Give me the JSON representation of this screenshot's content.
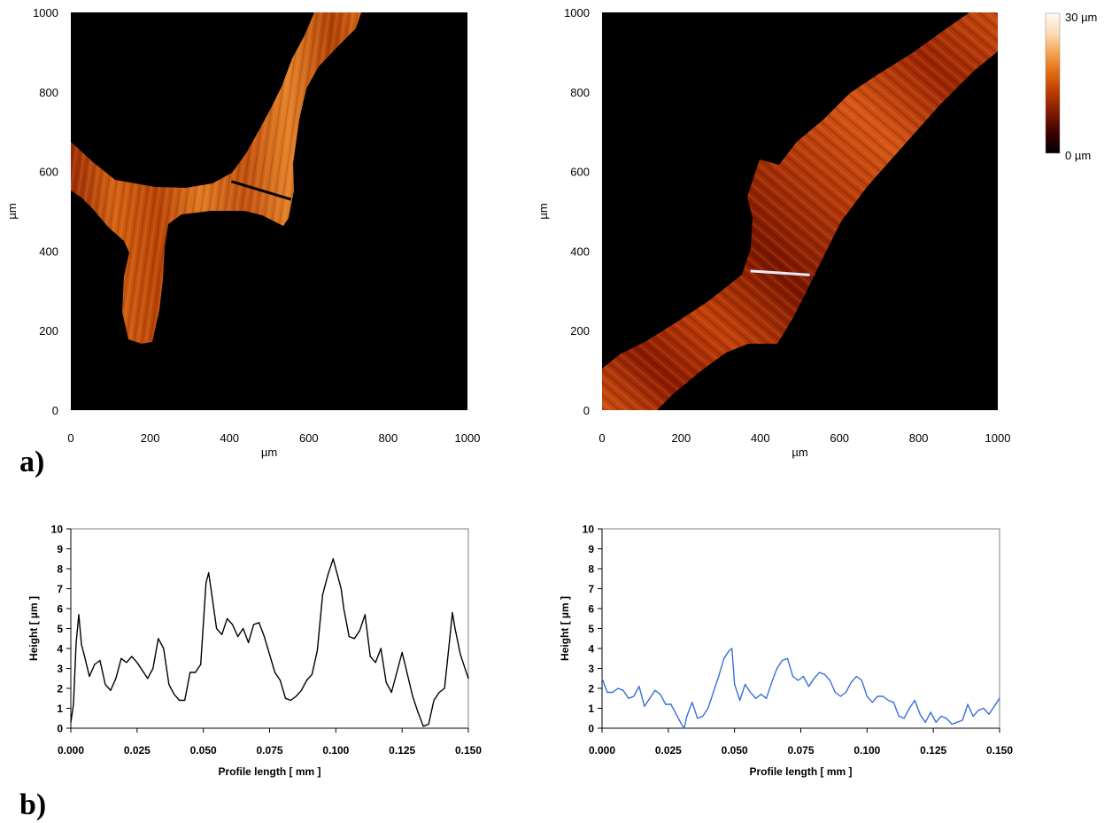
{
  "panel_labels": {
    "a": "a)",
    "b": "b)"
  },
  "colorbar": {
    "max_label": "30 µm",
    "min_label": "0 µm",
    "stops": [
      "#000000",
      "#3a0000",
      "#7a1a00",
      "#b83a00",
      "#e06a10",
      "#f6a050",
      "#fcdcb8",
      "#fffaf2"
    ]
  },
  "chart_data": [
    {
      "type": "heatmap",
      "name": "map-left",
      "xlabel": "µm",
      "ylabel": "µm",
      "xlim": [
        0,
        1000
      ],
      "ylim": [
        0,
        1000
      ],
      "xticks": [
        "0",
        "200",
        "400",
        "600",
        "800",
        "1000"
      ],
      "yticks": [
        "0",
        "200",
        "400",
        "600",
        "800",
        "1000"
      ],
      "colorscale_range_um": [
        0,
        30
      ],
      "profile_line": {
        "x": [
          405,
          555
        ],
        "y": [
          575,
          530
        ],
        "color": "#000000"
      }
    },
    {
      "type": "heatmap",
      "name": "map-right",
      "xlabel": "µm",
      "ylabel": "µm",
      "xlim": [
        0,
        1000
      ],
      "ylim": [
        0,
        1000
      ],
      "xticks": [
        "0",
        "200",
        "400",
        "600",
        "800",
        "1000"
      ],
      "yticks": [
        "0",
        "200",
        "400",
        "600",
        "800",
        "1000"
      ],
      "colorscale_range_um": [
        0,
        30
      ],
      "profile_line": {
        "x": [
          375,
          525
        ],
        "y": [
          350,
          340
        ],
        "color": "#e8e8ff"
      }
    },
    {
      "type": "line",
      "name": "profile-left",
      "xlabel": "Profile length [ mm ]",
      "ylabel": "Height [ µm ]",
      "xlim": [
        0,
        0.15
      ],
      "ylim": [
        0,
        10
      ],
      "xticks": [
        "0.000",
        "0.025",
        "0.050",
        "0.075",
        "0.100",
        "0.125",
        "0.150"
      ],
      "yticks": [
        "0",
        "1",
        "2",
        "3",
        "4",
        "5",
        "6",
        "7",
        "8",
        "9",
        "10"
      ],
      "color": "#000000",
      "x": [
        0,
        0.001,
        0.002,
        0.003,
        0.004,
        0.005,
        0.007,
        0.009,
        0.011,
        0.013,
        0.015,
        0.017,
        0.019,
        0.021,
        0.023,
        0.025,
        0.027,
        0.029,
        0.031,
        0.033,
        0.035,
        0.037,
        0.039,
        0.041,
        0.043,
        0.045,
        0.047,
        0.049,
        0.051,
        0.052,
        0.053,
        0.055,
        0.057,
        0.059,
        0.061,
        0.063,
        0.065,
        0.067,
        0.069,
        0.071,
        0.073,
        0.075,
        0.077,
        0.079,
        0.081,
        0.083,
        0.085,
        0.087,
        0.089,
        0.091,
        0.093,
        0.095,
        0.097,
        0.099,
        0.101,
        0.102,
        0.103,
        0.105,
        0.107,
        0.109,
        0.111,
        0.113,
        0.115,
        0.117,
        0.119,
        0.121,
        0.123,
        0.125,
        0.127,
        0.129,
        0.131,
        0.133,
        0.135,
        0.137,
        0.139,
        0.141,
        0.143,
        0.144,
        0.145,
        0.147,
        0.149,
        0.15
      ],
      "y": [
        0.3,
        1.2,
        4.3,
        5.7,
        4.2,
        3.7,
        2.6,
        3.2,
        3.4,
        2.2,
        1.9,
        2.5,
        3.5,
        3.3,
        3.6,
        3.3,
        2.9,
        2.5,
        3.0,
        4.5,
        4.0,
        2.2,
        1.7,
        1.4,
        1.4,
        2.8,
        2.8,
        3.2,
        7.3,
        7.8,
        6.9,
        5.0,
        4.7,
        5.5,
        5.2,
        4.6,
        5.0,
        4.3,
        5.2,
        5.3,
        4.6,
        3.7,
        2.8,
        2.4,
        1.5,
        1.4,
        1.6,
        1.9,
        2.4,
        2.7,
        3.9,
        6.7,
        7.7,
        8.5,
        7.5,
        7.0,
        6.0,
        4.6,
        4.5,
        4.9,
        5.7,
        3.6,
        3.3,
        4.0,
        2.3,
        1.8,
        2.8,
        3.8,
        2.7,
        1.6,
        0.8,
        0.1,
        0.2,
        1.4,
        1.8,
        2.0,
        4.5,
        5.8,
        5.0,
        3.7,
        2.9,
        2.5
      ]
    },
    {
      "type": "line",
      "name": "profile-right",
      "xlabel": "Profile length [ mm ]",
      "ylabel": "Height [ µm ]",
      "xlim": [
        0,
        0.15
      ],
      "ylim": [
        0,
        10
      ],
      "xticks": [
        "0.000",
        "0.025",
        "0.050",
        "0.075",
        "0.100",
        "0.125",
        "0.150"
      ],
      "yticks": [
        "0",
        "1",
        "2",
        "3",
        "4",
        "5",
        "6",
        "7",
        "8",
        "9",
        "10"
      ],
      "color": "#3a6fd8",
      "x": [
        0,
        0.002,
        0.004,
        0.006,
        0.008,
        0.01,
        0.012,
        0.014,
        0.016,
        0.018,
        0.02,
        0.022,
        0.024,
        0.026,
        0.028,
        0.03,
        0.031,
        0.032,
        0.034,
        0.036,
        0.038,
        0.04,
        0.042,
        0.044,
        0.046,
        0.048,
        0.049,
        0.05,
        0.052,
        0.054,
        0.056,
        0.058,
        0.06,
        0.062,
        0.064,
        0.066,
        0.068,
        0.07,
        0.072,
        0.074,
        0.076,
        0.078,
        0.08,
        0.082,
        0.084,
        0.086,
        0.088,
        0.09,
        0.092,
        0.094,
        0.096,
        0.098,
        0.1,
        0.102,
        0.104,
        0.106,
        0.108,
        0.11,
        0.112,
        0.114,
        0.116,
        0.118,
        0.12,
        0.122,
        0.124,
        0.126,
        0.128,
        0.13,
        0.132,
        0.134,
        0.136,
        0.138,
        0.14,
        0.142,
        0.144,
        0.146,
        0.148,
        0.15
      ],
      "y": [
        2.5,
        1.8,
        1.8,
        2.0,
        1.9,
        1.5,
        1.6,
        2.1,
        1.1,
        1.5,
        1.9,
        1.7,
        1.2,
        1.2,
        0.7,
        0.2,
        0.0,
        0.6,
        1.3,
        0.5,
        0.6,
        1.0,
        1.8,
        2.6,
        3.5,
        3.9,
        4.0,
        2.2,
        1.4,
        2.2,
        1.8,
        1.5,
        1.7,
        1.5,
        2.3,
        3.0,
        3.4,
        3.5,
        2.6,
        2.4,
        2.6,
        2.1,
        2.5,
        2.8,
        2.7,
        2.4,
        1.8,
        1.6,
        1.8,
        2.3,
        2.6,
        2.4,
        1.6,
        1.3,
        1.6,
        1.6,
        1.4,
        1.3,
        0.6,
        0.5,
        1.0,
        1.4,
        0.7,
        0.3,
        0.8,
        0.3,
        0.6,
        0.5,
        0.2,
        0.3,
        0.4,
        1.2,
        0.6,
        0.9,
        1.0,
        0.7,
        1.1,
        1.5
      ]
    }
  ]
}
